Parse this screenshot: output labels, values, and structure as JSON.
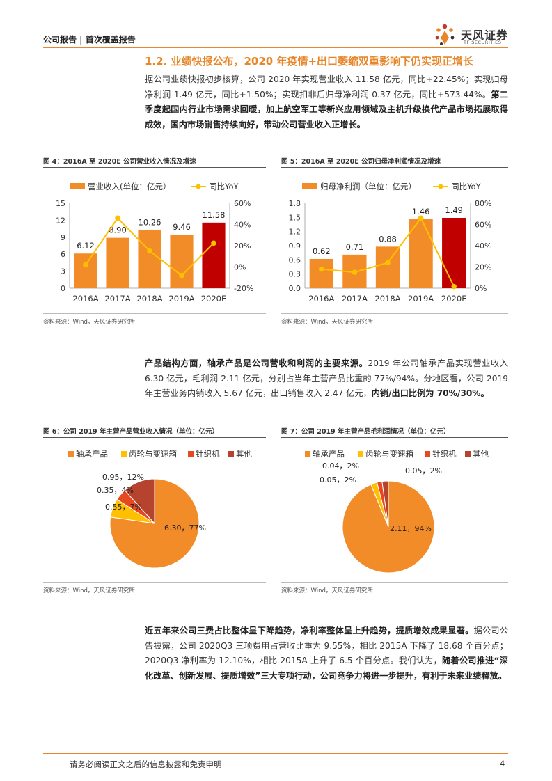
{
  "header": {
    "left": "公司报告 | 首次覆盖报告"
  },
  "logo": {
    "cn": "天风证券",
    "en": "TF SECURITIES"
  },
  "section_title": "1.2. 业绩快报公布，2020 年疫情+出口萎缩双重影响下仍实现正增长",
  "para1": {
    "normal": "据公司业绩快报初步核算，公司 2020 年实现营业收入 11.58 亿元，同比+22.45%；实现归母净利润 1.49 亿元，同比+1.50%；实现扣非后归母净利润 0.37 亿元，同比+573.44%。",
    "bold": "第二季度起国内行业市场需求回暖，加上航空军工等新兴应用领域及主机升级换代产品市场拓展取得成效，国内市场销售持续向好，带动公司营业收入正增长。"
  },
  "para2": {
    "bold1": "产品结构方面，轴承产品是公司营收和利润的主要来源。",
    "normal": "2019 年公司轴承产品实现营业收入 6.30 亿元，毛利润 2.11 亿元，分别占当年主营产品比重的 77%/94%。分地区看，公司 2019 年主营业务内销收入 5.67 亿元，出口销售收入 2.47 亿元，",
    "bold2": "内销/出口比例为 70%/30%。"
  },
  "para3": {
    "bold1": "近五年来公司三费占比整体呈下降趋势，净利率整体呈上升趋势，提质增效成果显著。",
    "normal": "据公司公告披露，公司 2020Q3 三项费用占营收比重为 9.55%，相比 2015A 下降了 18.68 个百分点；2020Q3 净利率为 12.10%，相比 2015A 上升了 6.5 个百分点。我们认为，",
    "bold2": "随着公司推进“深化改革、创新发展、提质增效”三大专项行动，公司竞争力将进一步提升，有利于未来业绩释放。"
  },
  "fig4": {
    "title": "图 4：2016A 至 2020E 公司营业收入情况及增速",
    "source": "资料来源：Wind，天风证券研究所"
  },
  "fig5": {
    "title": "图 5：2016A 至 2020E 公司归母净利润情况及增速",
    "source": "资料来源：Wind，天风证券研究所"
  },
  "fig6": {
    "title": "图 6：公司 2019 年主营产品营业收入情况（单位：亿元）",
    "source": "资料来源：Wind，天风证券研究所"
  },
  "fig7": {
    "title": "图 7：公司 2019 年主营产品毛利润情况（单位：亿元）",
    "source": "资料来源：Wind，天风证券研究所"
  },
  "footer": {
    "disclaimer": "请务必阅读正文之后的信息披露和免责申明",
    "page": "4"
  },
  "colors": {
    "accent": "#E8862A",
    "bar": "#F28C28",
    "bar_highlight": "#C00000",
    "line": "#FFC000",
    "pie": [
      "#F28C28",
      "#FFC000",
      "#E8481F",
      "#B5432D"
    ]
  },
  "chart_data": [
    {
      "type": "bar",
      "categories": [
        "2016A",
        "2017A",
        "2018A",
        "2019A",
        "2020E"
      ],
      "series": [
        {
          "name": "营业收入(单位：亿元）",
          "values": [
            6.12,
            8.9,
            10.26,
            9.46,
            11.58
          ],
          "axis": "left"
        },
        {
          "name": "同比YoY",
          "type": "line",
          "values": [
            2,
            46,
            15,
            -8,
            22.45
          ],
          "axis": "right"
        }
      ],
      "data_labels": [
        "6.12",
        "8.90",
        "10.26",
        "9.46",
        "11.58"
      ],
      "ylim": [
        0,
        15
      ],
      "yticks": [
        "0",
        "3",
        "6",
        "9",
        "12",
        "15"
      ],
      "y2lim": [
        -20,
        60
      ],
      "y2ticks": [
        "-20%",
        "0%",
        "20%",
        "40%",
        "60%"
      ],
      "legend": "top"
    },
    {
      "type": "bar",
      "categories": [
        "2016A",
        "2017A",
        "2018A",
        "2019A",
        "2020E"
      ],
      "series": [
        {
          "name": "归母净利润（单位：亿元）",
          "values": [
            0.62,
            0.71,
            0.88,
            1.46,
            1.49
          ],
          "axis": "left"
        },
        {
          "name": "同比YoY",
          "type": "line",
          "values": [
            18,
            15,
            24,
            66,
            1.5
          ],
          "axis": "right"
        }
      ],
      "data_labels": [
        "0.62",
        "0.71",
        "0.88",
        "1.46",
        "1.49"
      ],
      "ylim": [
        0,
        1.8
      ],
      "yticks": [
        "0.0",
        "0.3",
        "0.6",
        "0.9",
        "1.2",
        "1.5",
        "1.8"
      ],
      "y2lim": [
        0,
        80
      ],
      "y2ticks": [
        "0%",
        "20%",
        "40%",
        "60%",
        "80%"
      ],
      "legend": "top"
    },
    {
      "type": "pie",
      "categories": [
        "轴承产品",
        "齿轮与变速箱",
        "针织机",
        "其他"
      ],
      "values": [
        6.3,
        0.55,
        0.35,
        0.95
      ],
      "data_labels": [
        "6.30，77%",
        "0.55，7%",
        "0.35，4%",
        "0.95，12%"
      ],
      "legend": "top"
    },
    {
      "type": "pie",
      "categories": [
        "轴承产品",
        "齿轮与变速箱",
        "针织机",
        "其他"
      ],
      "values": [
        2.11,
        0.05,
        0.04,
        0.05
      ],
      "data_labels": [
        "2.11，94%",
        "0.05，2%",
        "0.04，2%",
        "0.05，2%"
      ],
      "legend": "top"
    }
  ]
}
